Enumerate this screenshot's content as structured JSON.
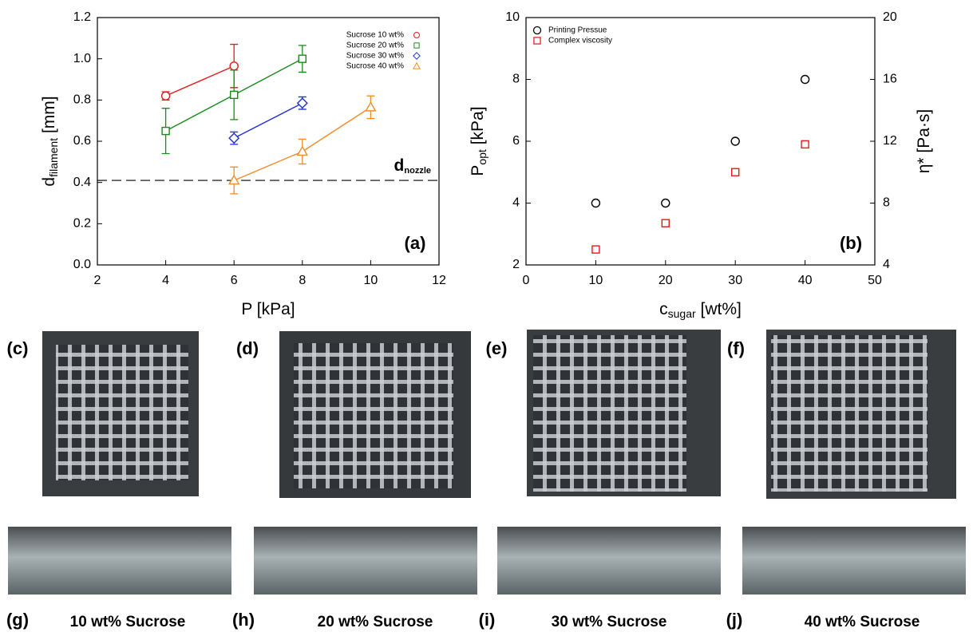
{
  "chart_data": [
    {
      "type": "scatter",
      "panel": "(a)",
      "xlabel": {
        "main": "P [kPa]"
      },
      "ylabel": {
        "main": "d",
        "sub": "filament",
        "unit": " [mm]"
      },
      "xlim": [
        2,
        12
      ],
      "xticks": [
        2,
        4,
        6,
        8,
        10,
        12
      ],
      "ylim": [
        0,
        1.2
      ],
      "yticks": [
        {
          "value": 0,
          "label": "0.0"
        },
        0.2,
        0.4,
        0.6,
        0.8,
        {
          "value": 1,
          "label": "1.0"
        },
        1.2
      ],
      "hline": 0.41,
      "hline_label": {
        "main": "d",
        "sub": "nozzle"
      },
      "legend": "upper right",
      "connect": true,
      "series": [
        {
          "name": "Sucrose 10 wt%",
          "color": "#e31a1c",
          "marker": "circle",
          "x": [
            4,
            6
          ],
          "values": [
            0.82,
            0.965
          ],
          "errors": [
            0.02,
            0.105
          ]
        },
        {
          "name": "Sucrose 20 wt%",
          "color": "#1a8a1a",
          "marker": "square",
          "x": [
            4,
            6,
            8
          ],
          "values": [
            0.65,
            0.825,
            1.0
          ],
          "errors": [
            0.11,
            0.12,
            0.065
          ]
        },
        {
          "name": "Sucrose 30 wt%",
          "color": "#1f2fd0",
          "marker": "diamond",
          "x": [
            6,
            8
          ],
          "values": [
            0.615,
            0.785
          ],
          "errors": [
            0.03,
            0.03
          ]
        },
        {
          "name": "Sucrose 40 wt%",
          "color": "#f08c2a",
          "marker": "triangle",
          "x": [
            6,
            8,
            10
          ],
          "values": [
            0.41,
            0.55,
            0.765
          ],
          "errors": [
            0.065,
            0.06,
            0.055
          ]
        }
      ]
    },
    {
      "type": "scatter",
      "panel": "(b)",
      "xlabel": {
        "main": "c",
        "sub": "sugar",
        "unit": " [wt%]"
      },
      "ylabel": {
        "main": "P",
        "sub": "opt",
        "unit": " [kPa]"
      },
      "y2label": {
        "main": "η* [Pa·s]"
      },
      "xlim": [
        0,
        50
      ],
      "xticks": [
        0,
        10,
        20,
        30,
        40,
        50
      ],
      "ylim": [
        2,
        10
      ],
      "yticks": [
        2,
        4,
        6,
        8,
        10
      ],
      "y2lim": [
        4,
        20
      ],
      "y2ticks": [
        4,
        8,
        12,
        16,
        20
      ],
      "legend": "upper left",
      "connect": false,
      "series": [
        {
          "name": "Printing Pressue",
          "color": "#000000",
          "marker": "circle",
          "x": [
            10,
            20,
            30,
            40
          ],
          "values": [
            4,
            4,
            6,
            8
          ]
        },
        {
          "name": "Complex viscosity",
          "color": "#e31a1c",
          "marker": "square",
          "axis": "y2",
          "x": [
            10,
            20,
            30,
            40
          ],
          "values": [
            5.0,
            6.7,
            10.0,
            11.8
          ]
        }
      ]
    }
  ],
  "photos": {
    "top_labels": [
      "(c)",
      "(d)",
      "(e)",
      "(f)"
    ],
    "bottom_labels": [
      "(g)",
      "(h)",
      "(i)",
      "(j)"
    ],
    "captions": [
      "10 wt% Sucrose",
      "20 wt% Sucrose",
      "30 wt% Sucrose",
      "40 wt% Sucrose"
    ]
  }
}
